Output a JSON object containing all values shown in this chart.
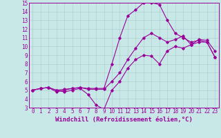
{
  "xlabel": "Windchill (Refroidissement éolien,°C)",
  "line_color": "#990099",
  "bg_color": "#c8e8e8",
  "grid_color": "#b0d0d0",
  "xlim": [
    -0.5,
    23.5
  ],
  "ylim": [
    3,
    15
  ],
  "xticks": [
    0,
    1,
    2,
    3,
    4,
    5,
    6,
    7,
    8,
    9,
    10,
    11,
    12,
    13,
    14,
    15,
    16,
    17,
    18,
    19,
    20,
    21,
    22,
    23
  ],
  "yticks": [
    3,
    4,
    5,
    6,
    7,
    8,
    9,
    10,
    11,
    12,
    13,
    14,
    15
  ],
  "line1_x": [
    0,
    1,
    2,
    3,
    4,
    5,
    6,
    7,
    8,
    9,
    10,
    11,
    12,
    13,
    14,
    15,
    16,
    17,
    18,
    19,
    20,
    21,
    22,
    23
  ],
  "line1_y": [
    5.0,
    5.2,
    5.3,
    5.0,
    4.8,
    5.0,
    5.2,
    4.5,
    3.3,
    2.8,
    5.0,
    6.0,
    7.5,
    8.5,
    9.0,
    8.9,
    8.0,
    9.5,
    10.0,
    9.8,
    10.2,
    10.8,
    10.7,
    9.5
  ],
  "line2_x": [
    0,
    1,
    2,
    3,
    4,
    5,
    6,
    7,
    8,
    9,
    10,
    11,
    12,
    13,
    14,
    15,
    16,
    17,
    18,
    19,
    20,
    21,
    22,
    23
  ],
  "line2_y": [
    5.0,
    5.2,
    5.3,
    5.0,
    5.1,
    5.2,
    5.3,
    5.2,
    5.2,
    5.2,
    8.0,
    11.0,
    13.5,
    14.2,
    15.0,
    15.0,
    14.8,
    13.0,
    11.5,
    11.0,
    10.5,
    10.7,
    10.5,
    8.8
  ],
  "line3_x": [
    0,
    1,
    2,
    3,
    4,
    5,
    6,
    7,
    8,
    9,
    10,
    11,
    12,
    13,
    14,
    15,
    16,
    17,
    18,
    19,
    20,
    21,
    22,
    23
  ],
  "line3_y": [
    5.0,
    5.2,
    5.3,
    4.8,
    5.0,
    5.2,
    5.3,
    5.1,
    5.1,
    5.1,
    6.0,
    7.0,
    8.5,
    9.8,
    11.0,
    11.5,
    11.0,
    10.5,
    10.8,
    11.2,
    10.2,
    10.5,
    10.5,
    8.8
  ],
  "marker": "D",
  "marker_size": 1.8,
  "linewidth": 0.8,
  "font_color": "#990099",
  "font_name": "monospace",
  "tick_fontsize": 5.5,
  "xlabel_fontsize": 6.5
}
